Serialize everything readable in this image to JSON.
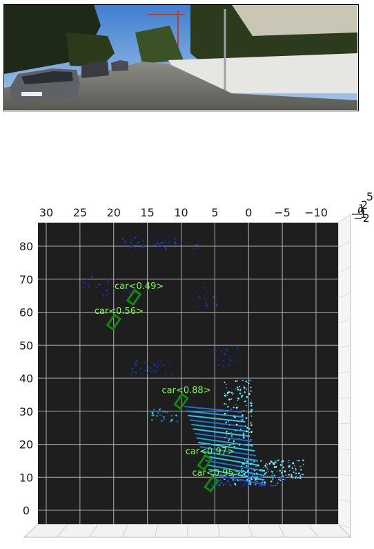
{
  "camera_image": {
    "description_icon": "street-scene-photo"
  },
  "bev_plot": {
    "x_ticks": [
      "30",
      "25",
      "20",
      "15",
      "10",
      "5",
      "0",
      "−5",
      "−10"
    ],
    "y_ticks": [
      "80",
      "70",
      "60",
      "50",
      "40",
      "30",
      "20",
      "10",
      "0"
    ],
    "z_ticks": [
      "5",
      "2",
      "1",
      "0",
      "−1",
      "−2"
    ],
    "colors": {
      "panel": "#1e1e1e",
      "grid": "#b0b0b0",
      "box": "#0f8a0f",
      "label": "#7CFC4A"
    },
    "detections": [
      {
        "label": "car<0.49>",
        "x": 17,
        "y": 64.5
      },
      {
        "label": "car<0.56>",
        "x": 20,
        "y": 57
      },
      {
        "label": "car<0.88>",
        "x": 10,
        "y": 33
      },
      {
        "label": "car<0.97>",
        "x": 6.5,
        "y": 14.5
      },
      {
        "label": "car<0.95>",
        "x": 5.5,
        "y": 8
      }
    ]
  }
}
